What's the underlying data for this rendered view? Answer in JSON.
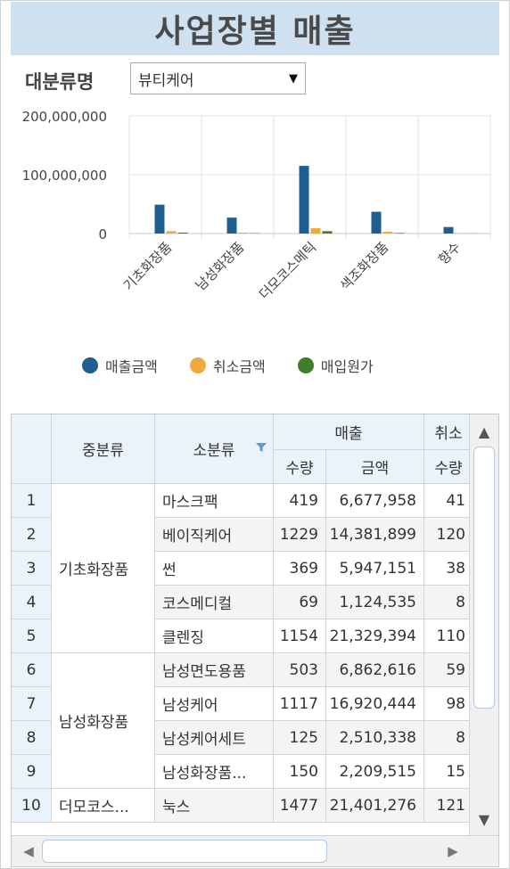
{
  "title": "사업장별 매출",
  "filter": {
    "label": "대분류명",
    "value": "뷰티케어"
  },
  "colors": {
    "sales": "#1f5f8f",
    "cancel": "#f2a93b",
    "cost": "#3f7f2a",
    "header_bg": "#eaf2fb",
    "title_bg": "#cfe0f1"
  },
  "chart_data": {
    "type": "bar",
    "categories": [
      "기초화장품",
      "남성화장품",
      "더모코스메틱",
      "색조화장품",
      "향수"
    ],
    "series": [
      {
        "name": "매출금액",
        "values": [
          49000000,
          27000000,
          115000000,
          37000000,
          11000000
        ]
      },
      {
        "name": "취소금액",
        "values": [
          4000000,
          1500000,
          9000000,
          3000000,
          700000
        ]
      },
      {
        "name": "매입원가",
        "values": [
          1500000,
          600000,
          4000000,
          1000000,
          300000
        ]
      }
    ],
    "yticks": [
      "200,000,000",
      "100,000,000",
      "0"
    ],
    "ylim": [
      0,
      200000000
    ],
    "legend_position": "bottom",
    "grid": true
  },
  "grid": {
    "headers": {
      "mid": "중분류",
      "sub": "소분류",
      "sales": "매출",
      "cancel": "취소",
      "qty": "수량",
      "amount": "금액",
      "cancel_qty": "수량"
    },
    "groups": [
      {
        "label": "기초화장품",
        "rows": 5
      },
      {
        "label": "남성화장품",
        "rows": 4
      },
      {
        "label": "더모코스...",
        "rows": 1
      }
    ],
    "rows": [
      {
        "n": "1",
        "sub": "마스크팩",
        "qty": "419",
        "amount": "6,677,958",
        "cqty": "41"
      },
      {
        "n": "2",
        "sub": "베이직케어",
        "qty": "1229",
        "amount": "14,381,899",
        "cqty": "120"
      },
      {
        "n": "3",
        "sub": "썬",
        "qty": "369",
        "amount": "5,947,151",
        "cqty": "38"
      },
      {
        "n": "4",
        "sub": "코스메디컬",
        "qty": "69",
        "amount": "1,124,535",
        "cqty": "8"
      },
      {
        "n": "5",
        "sub": "클렌징",
        "qty": "1154",
        "amount": "21,329,394",
        "cqty": "110"
      },
      {
        "n": "6",
        "sub": "남성면도용품",
        "qty": "503",
        "amount": "6,862,616",
        "cqty": "59"
      },
      {
        "n": "7",
        "sub": "남성케어",
        "qty": "1117",
        "amount": "16,920,444",
        "cqty": "98"
      },
      {
        "n": "8",
        "sub": "남성케어세트",
        "qty": "125",
        "amount": "2,510,338",
        "cqty": "8"
      },
      {
        "n": "9",
        "sub": "남성화장품...",
        "qty": "150",
        "amount": "2,209,515",
        "cqty": "15"
      },
      {
        "n": "10",
        "sub": "눅스",
        "qty": "1477",
        "amount": "21,401,276",
        "cqty": "121"
      }
    ]
  },
  "icons": {
    "dropdown": "caret-down-icon",
    "filter": "funnel-icon",
    "scroll_up": "triangle-up-icon",
    "scroll_down": "triangle-down-icon",
    "scroll_left": "triangle-left-icon",
    "scroll_right": "triangle-right-icon"
  }
}
